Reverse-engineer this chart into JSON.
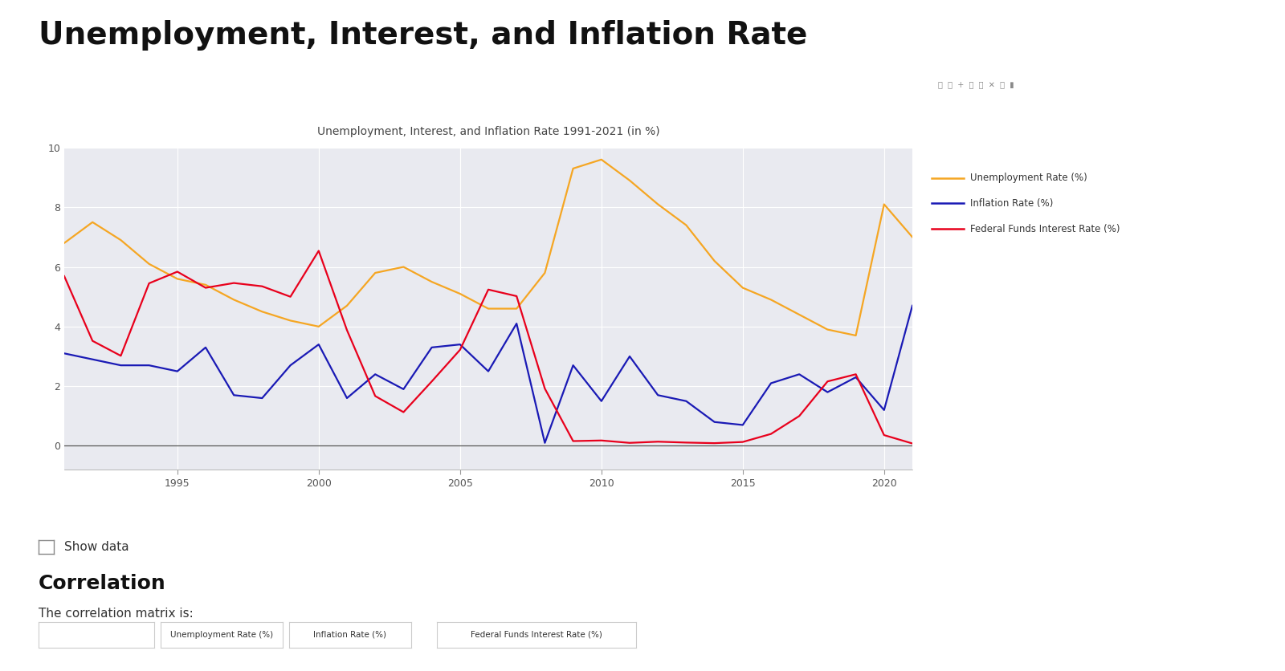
{
  "page_title": "Unemployment, Interest, and Inflation Rate",
  "chart_title": "Unemployment, Interest, and Inflation Rate 1991-2021 (in %)",
  "years": [
    1991,
    1992,
    1993,
    1994,
    1995,
    1996,
    1997,
    1998,
    1999,
    2000,
    2001,
    2002,
    2003,
    2004,
    2005,
    2006,
    2007,
    2008,
    2009,
    2010,
    2011,
    2012,
    2013,
    2014,
    2015,
    2016,
    2017,
    2018,
    2019,
    2020,
    2021
  ],
  "unemployment": [
    6.8,
    7.5,
    6.9,
    6.1,
    5.6,
    5.4,
    4.9,
    4.5,
    4.2,
    4.0,
    4.7,
    5.8,
    6.0,
    5.5,
    5.1,
    4.6,
    4.6,
    5.8,
    9.3,
    9.6,
    8.9,
    8.1,
    7.4,
    6.2,
    5.3,
    4.9,
    4.4,
    3.9,
    3.7,
    8.1,
    7.0
  ],
  "inflation": [
    3.1,
    2.9,
    2.7,
    2.7,
    2.5,
    3.3,
    1.7,
    1.6,
    2.7,
    3.4,
    1.6,
    2.4,
    1.9,
    3.3,
    3.4,
    2.5,
    4.1,
    0.1,
    2.7,
    1.5,
    3.0,
    1.7,
    1.5,
    0.8,
    0.7,
    2.1,
    2.4,
    1.8,
    2.3,
    1.2,
    4.7
  ],
  "interest": [
    5.69,
    3.52,
    3.02,
    5.45,
    5.84,
    5.3,
    5.46,
    5.35,
    5.0,
    6.54,
    3.88,
    1.67,
    1.13,
    2.16,
    3.22,
    5.24,
    5.02,
    1.92,
    0.16,
    0.18,
    0.1,
    0.14,
    0.11,
    0.09,
    0.13,
    0.4,
    1.0,
    2.16,
    2.4,
    0.36,
    0.08
  ],
  "unemployment_color": "#F5A623",
  "inflation_color": "#1A1AB5",
  "interest_color": "#E8001C",
  "plot_bg_color": "#E9EAF0",
  "fig_bg_color": "#FFFFFF",
  "ylabel_max": 10,
  "ylabel_min": -0.8,
  "legend_labels": [
    "Unemployment Rate (%)",
    "Inflation Rate (%)",
    "Federal Funds Interest Rate (%)"
  ],
  "section_show_data": "Show data",
  "section_correlation": "Correlation",
  "section_matrix": "The correlation matrix is:",
  "table_headers": [
    "",
    "Unemployment Rate (%)",
    "Inflation Rate (%)",
    "Federal Funds Interest Rate (%)"
  ]
}
